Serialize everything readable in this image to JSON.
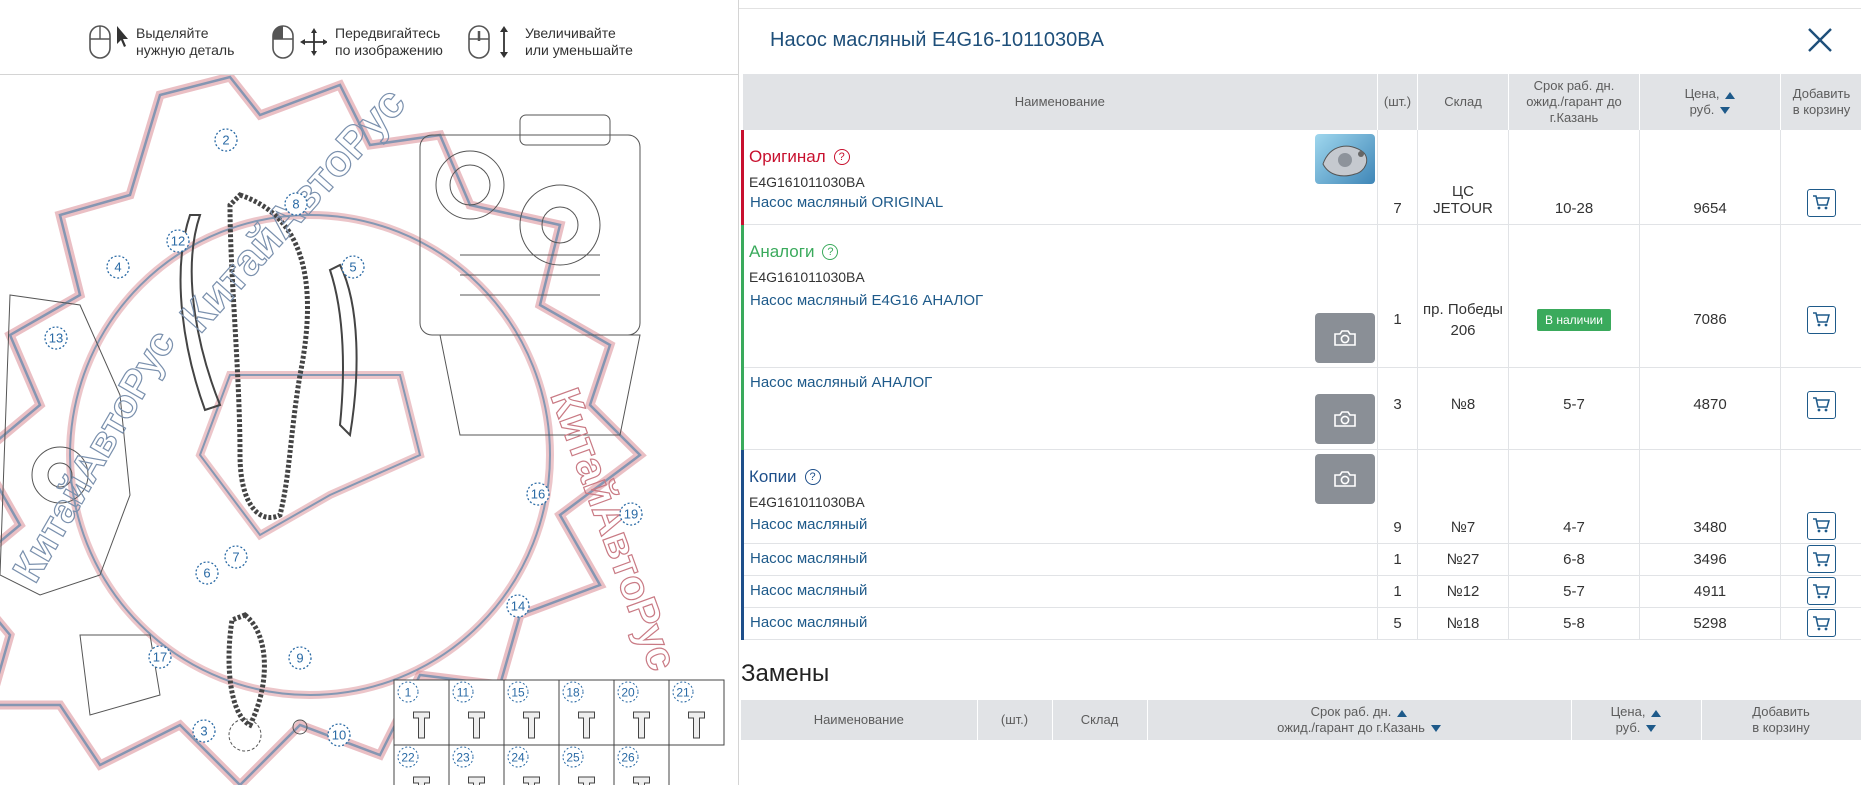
{
  "hints": [
    {
      "line1": "Выделяйте",
      "line2": "нужную деталь",
      "icon": "mouse-click-icon"
    },
    {
      "line1": "Передвигайтесь",
      "line2": "по изображению",
      "icon": "mouse-move-icon"
    },
    {
      "line1": "Увеличивайте",
      "line2": "или уменьшайте",
      "icon": "mouse-scroll-icon"
    }
  ],
  "diagram": {
    "watermark": "КитайАвтоРус",
    "callouts": [
      "2",
      "8",
      "12",
      "4",
      "5",
      "13",
      "16",
      "19",
      "7",
      "6",
      "14",
      "17",
      "9",
      "3",
      "10"
    ],
    "parts_grid": [
      "1",
      "11",
      "15",
      "18",
      "20",
      "21",
      "22",
      "23",
      "24",
      "25",
      "26"
    ]
  },
  "panel": {
    "title": "Насос масляный E4G16-1011030BA"
  },
  "columns": {
    "name": "Наименование",
    "qty": "(шт.)",
    "warehouse": "Склад",
    "term_line1": "Срок раб. дн.",
    "term_line2": "ожид./гарант до",
    "term_line3": "г.Казань",
    "price_line1": "Цена,",
    "price_line2": "руб.",
    "add_line1": "Добавить",
    "add_line2": "в корзину"
  },
  "groups": {
    "original": {
      "label": "Оригинал",
      "help": "?",
      "code": "E4G161011030BA",
      "color": "#c8102e"
    },
    "analogs": {
      "label": "Аналоги",
      "help": "?",
      "code": "E4G161011030BA",
      "color": "#3aaa5c"
    },
    "copies": {
      "label": "Копии",
      "help": "?",
      "code": "E4G161011030BA",
      "color": "#1e4f8a"
    }
  },
  "rows": [
    {
      "name": "Насос масляный ORIGINAL",
      "qty": "7",
      "warehouse": "ЦС JETOUR",
      "term": "10-28",
      "price": "9654"
    },
    {
      "name": "Насос масляный E4G16 АНАЛОГ",
      "qty": "1",
      "warehouse": "пр. Победы 206",
      "term": "В наличии",
      "price": "7086"
    },
    {
      "name": "Насос масляный АНАЛОГ",
      "qty": "3",
      "warehouse": "№8",
      "term": "5-7",
      "price": "4870"
    },
    {
      "name": "Насос масляный",
      "qty": "9",
      "warehouse": "№7",
      "term": "4-7",
      "price": "3480"
    },
    {
      "name": "Насос масляный",
      "qty": "1",
      "warehouse": "№27",
      "term": "6-8",
      "price": "3496"
    },
    {
      "name": "Насос масляный",
      "qty": "1",
      "warehouse": "№12",
      "term": "5-7",
      "price": "4911"
    },
    {
      "name": "Насос масляный",
      "qty": "5",
      "warehouse": "№18",
      "term": "5-8",
      "price": "5298"
    }
  ],
  "replacements": {
    "title": "Замены",
    "columns": {
      "name": "Наименование",
      "qty": "(шт.)",
      "warehouse": "Склад",
      "term_line1": "Срок раб. дн.",
      "term_line2": "ожид./гарант до г.Казань",
      "price_line1": "Цена,",
      "price_line2": "руб.",
      "add_line1": "Добавить",
      "add_line2": "в корзину"
    }
  },
  "colors": {
    "accent": "#1e4f7a",
    "link": "#1e5a8a",
    "header_bg": "#e1e3e6",
    "in_stock": "#3aaa5c"
  }
}
